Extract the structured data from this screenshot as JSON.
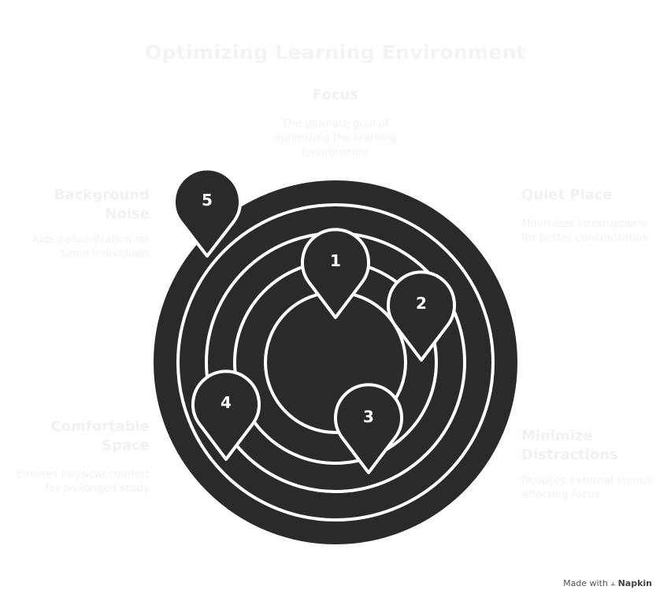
{
  "title": "Optimizing Learning Environment",
  "center": {
    "title": "Focus",
    "description": "The ultimate goal of optimizing the learning environment"
  },
  "items": [
    {
      "number": "1"
    },
    {
      "number": "2",
      "title": "Quiet Place",
      "description": "Minimizes interruptions for better concentration"
    },
    {
      "number": "3",
      "title": "Minimize Distractions",
      "description": "Reduces external stimuli affecting focus"
    },
    {
      "number": "4",
      "title": "Comfortable Space",
      "description": "Ensures physical comfort for prolonged study"
    },
    {
      "number": "5",
      "title": "Background Noise",
      "description": "Aids concentration for some individuals"
    }
  ],
  "footer": {
    "made_with": "Made with",
    "brand": "Napkin"
  },
  "colors": {
    "fill": "#2a2a2a",
    "stroke": "#ffffff",
    "faint_text": "#f1f1f1"
  }
}
